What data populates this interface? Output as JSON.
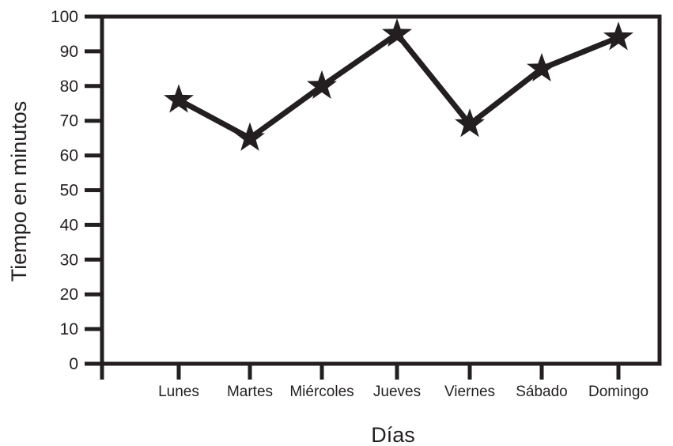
{
  "chart_data": {
    "type": "line",
    "title": "",
    "xlabel": "Días",
    "ylabel": "Tiempo en minutos",
    "categories": [
      "Lunes",
      "Martes",
      "Miércoles",
      "Jueves",
      "Viernes",
      "Sábado",
      "Domingo"
    ],
    "values": [
      76,
      65,
      80,
      95,
      69,
      85,
      94
    ],
    "ylim": [
      0,
      100
    ],
    "yticks": [
      0,
      10,
      20,
      30,
      40,
      50,
      60,
      70,
      80,
      90,
      100
    ],
    "marker": "star",
    "grid": false,
    "colors": {
      "line": "#231f20",
      "marker": "#231f20",
      "axis": "#231f20"
    }
  }
}
